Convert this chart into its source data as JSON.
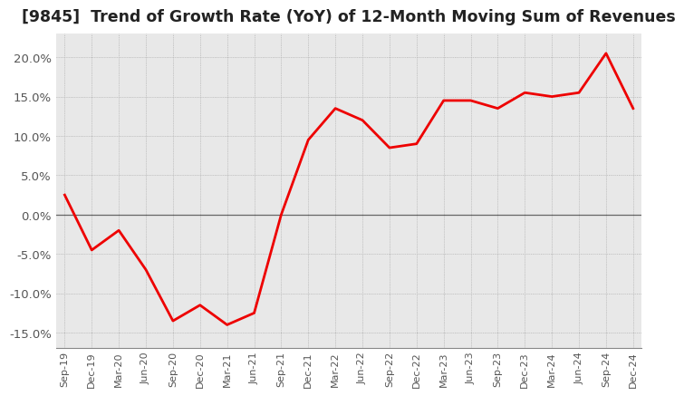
{
  "title": "[9845]  Trend of Growth Rate (YoY) of 12-Month Moving Sum of Revenues",
  "title_fontsize": 12.5,
  "background_color": "#ffffff",
  "plot_bg_color": "#e8e8e8",
  "grid_color": "#aaaaaa",
  "line_color": "#ee0000",
  "zero_line_color": "#666666",
  "x_labels": [
    "Sep-19",
    "Dec-19",
    "Mar-20",
    "Jun-20",
    "Sep-20",
    "Dec-20",
    "Mar-21",
    "Jun-21",
    "Sep-21",
    "Dec-21",
    "Mar-22",
    "Jun-22",
    "Sep-22",
    "Dec-22",
    "Mar-23",
    "Jun-23",
    "Sep-23",
    "Dec-23",
    "Mar-24",
    "Jun-24",
    "Sep-24",
    "Dec-24"
  ],
  "values": [
    2.5,
    -4.5,
    -2.0,
    -7.0,
    -13.5,
    -11.5,
    -14.0,
    -12.5,
    0.0,
    9.5,
    13.5,
    12.0,
    8.5,
    9.0,
    14.5,
    14.5,
    13.5,
    15.5,
    15.0,
    15.5,
    20.5,
    13.5
  ],
  "ylim": [
    -17,
    23
  ],
  "yticks": [
    -15.0,
    -10.0,
    -5.0,
    0.0,
    5.0,
    10.0,
    15.0,
    20.0
  ],
  "ylabel_fontsize": 9.5,
  "xlabel_fontsize": 8.0,
  "tick_color": "#555555",
  "line_width": 2.0
}
